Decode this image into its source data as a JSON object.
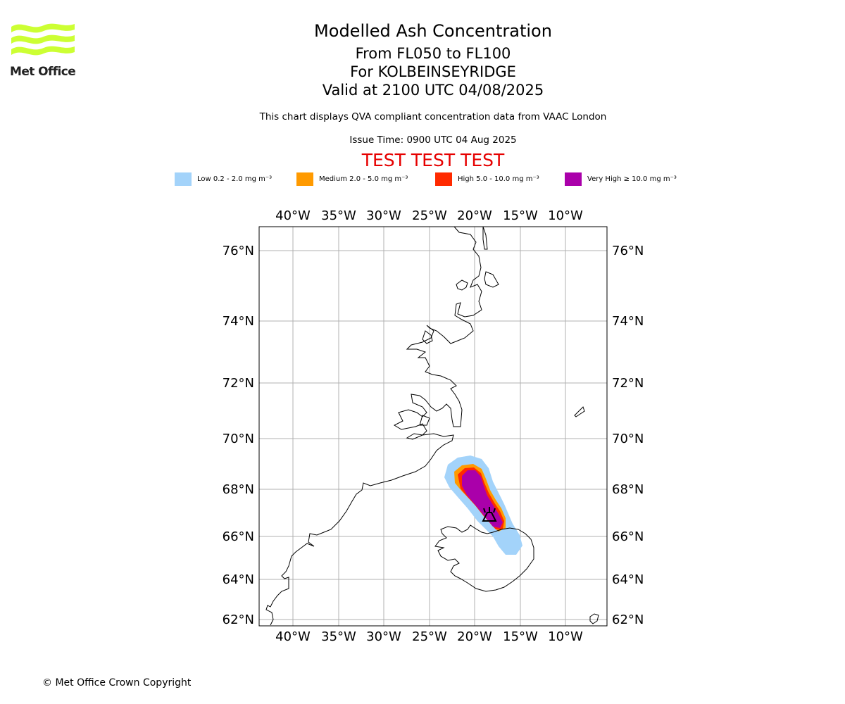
{
  "logo": {
    "name": "Met Office"
  },
  "header": {
    "title": "Modelled Ash Concentration",
    "level_range": "From FL050 to FL100",
    "location": "For KOLBEINSEYRIDGE",
    "valid": "Valid at 2100 UTC 04/08/2025",
    "description": "This chart displays QVA compliant concentration data from VAAC London",
    "issue_time": "Issue Time: 0900 UTC 04 Aug 2025",
    "test_banner": "TEST TEST TEST"
  },
  "legend": [
    {
      "label": "Low 0.2 - 2.0 mg m⁻³",
      "color": "#a3d3fa"
    },
    {
      "label": "Medium 2.0 - 5.0 mg m⁻³",
      "color": "#ff9a00"
    },
    {
      "label": "High 5.0 - 10.0 mg m⁻³",
      "color": "#ff2a00"
    },
    {
      "label": "Very High ≥ 10.0 mg m⁻³",
      "color": "#aa00aa"
    }
  ],
  "map": {
    "longitude_labels": [
      "40°W",
      "35°W",
      "30°W",
      "25°W",
      "20°W",
      "15°W",
      "10°W"
    ],
    "latitude_labels": [
      "76°N",
      "74°N",
      "72°N",
      "70°N",
      "68°N",
      "66°N",
      "64°N",
      "62°N"
    ],
    "volcano_marker": "volcano-symbol"
  },
  "footer": {
    "copyright": "© Met Office Crown Copyright"
  }
}
